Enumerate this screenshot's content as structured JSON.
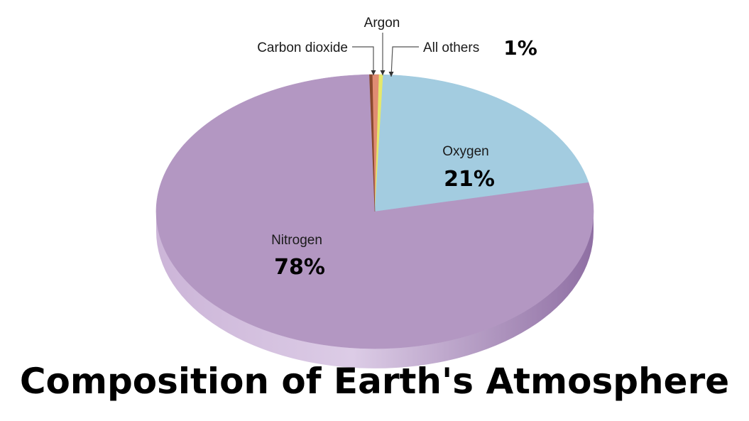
{
  "chart_data": {
    "type": "pie",
    "title": "Composition of Earth's Atmosphere",
    "slices": [
      {
        "label": "Nitrogen",
        "value": 78,
        "value_label": "78%",
        "color": "#b397c2"
      },
      {
        "label": "Oxygen",
        "value": 21,
        "value_label": "21%",
        "color": "#a3cce0"
      },
      {
        "label": "All others",
        "value": 0.3,
        "color": "#e6e86a"
      },
      {
        "label": "Argon",
        "value": 0.5,
        "color": "#e08c73"
      },
      {
        "label": "Carbon dioxide",
        "value": 0.2,
        "color": "#8b4a2e"
      }
    ],
    "minor_group_label": "1%",
    "style": "3d-tilted"
  }
}
